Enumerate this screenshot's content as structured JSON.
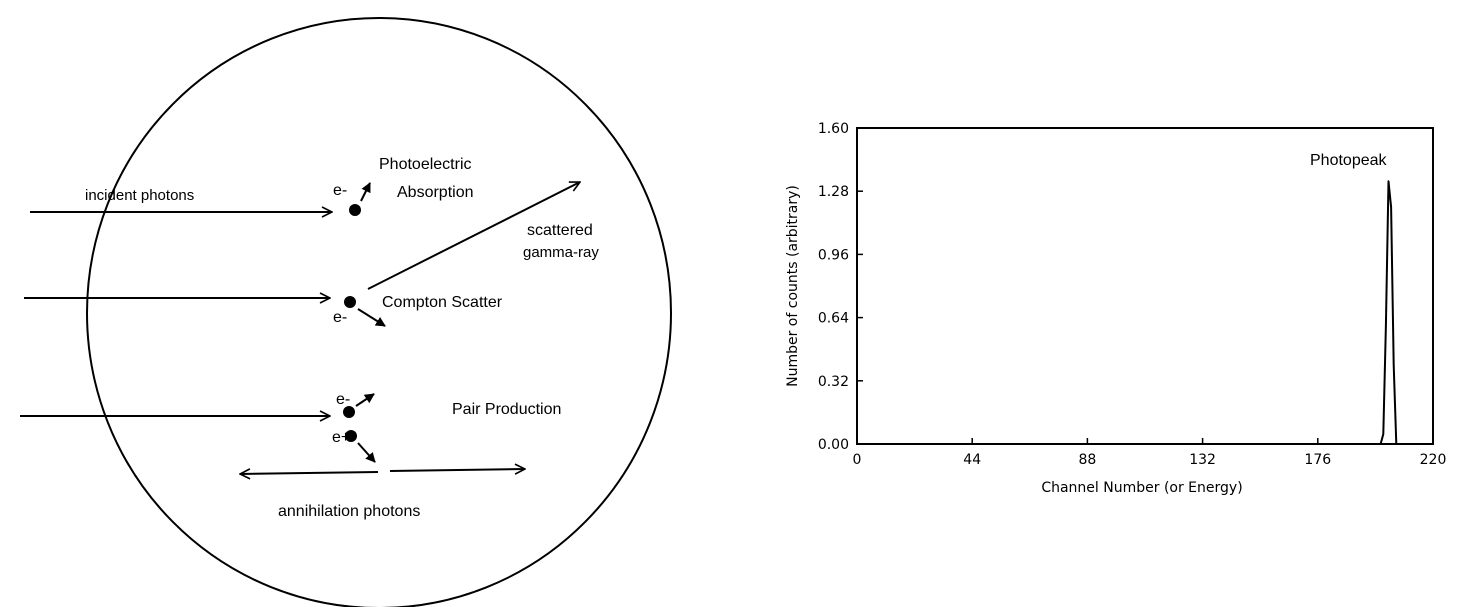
{
  "diagram": {
    "labels": {
      "incident_photons": "incident photons",
      "photoelectric_line1": "Photoelectric",
      "photoelectric_line2": "Absorption",
      "electron": "e-",
      "scattered_line1": "scattered",
      "scattered_line2": "gamma-ray",
      "compton": "Compton Scatter",
      "positron": "e+",
      "pair_production": "Pair Production",
      "annihilation": "annihilation photons"
    }
  },
  "chart_data": {
    "type": "line",
    "title": "",
    "annotation": "Photopeak",
    "xlabel": "Channel Number (or Energy)",
    "ylabel": "Number of counts (arbitrary)",
    "xlim": [
      0,
      220
    ],
    "ylim": [
      0,
      1.6
    ],
    "x_ticks": [
      "0",
      "44",
      "88",
      "132",
      "176",
      "220"
    ],
    "y_ticks": [
      "0.00",
      "0.32",
      "0.64",
      "0.96",
      "1.28",
      "1.60"
    ],
    "grid": false,
    "series": [
      {
        "x": [
          0,
          200,
          201,
          202,
          203,
          204,
          205,
          206,
          220
        ],
        "y": [
          0,
          0,
          0.05,
          0.6,
          1.33,
          1.2,
          0.4,
          0,
          0
        ]
      }
    ]
  }
}
